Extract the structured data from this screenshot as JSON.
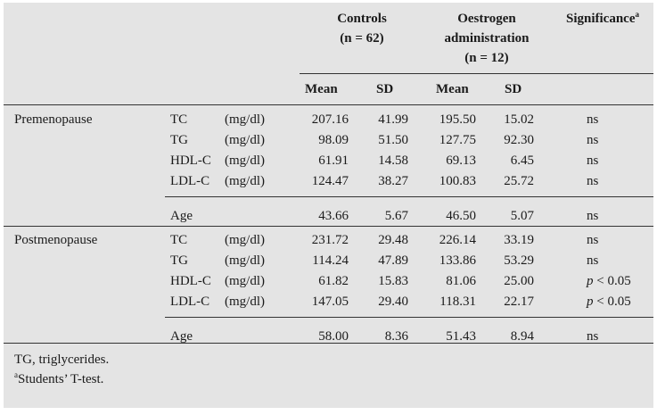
{
  "header": {
    "controls_line1": "Controls",
    "controls_line2": "(n = 62)",
    "oestrogen_line1": "Oestrogen",
    "oestrogen_line2": "administration",
    "oestrogen_line3": "(n = 12)",
    "significance": "Significance",
    "significance_sup": "a",
    "mean_label": "Mean",
    "sd_label": "SD"
  },
  "groups": [
    {
      "name": "Premenopause",
      "rows": [
        {
          "param": "TC",
          "unit": "(mg/dl)",
          "c_mean": "207.16",
          "c_sd": "41.99",
          "o_mean": "195.50",
          "o_sd": "15.02",
          "sig_p": "",
          "sig": "ns"
        },
        {
          "param": "TG",
          "unit": "(mg/dl)",
          "c_mean": "98.09",
          "c_sd": "51.50",
          "o_mean": "127.75",
          "o_sd": "92.30",
          "sig_p": "",
          "sig": "ns"
        },
        {
          "param": "HDL-C",
          "unit": "(mg/dl)",
          "c_mean": "61.91",
          "c_sd": "14.58",
          "o_mean": "69.13",
          "o_sd": "6.45",
          "sig_p": "",
          "sig": "ns"
        },
        {
          "param": "LDL-C",
          "unit": "(mg/dl)",
          "c_mean": "124.47",
          "c_sd": "38.27",
          "o_mean": "100.83",
          "o_sd": "25.72",
          "sig_p": "",
          "sig": "ns"
        }
      ],
      "age": {
        "param": "Age",
        "c_mean": "43.66",
        "c_sd": "5.67",
        "o_mean": "46.50",
        "o_sd": "5.07",
        "sig": "ns"
      }
    },
    {
      "name": "Postmenopause",
      "rows": [
        {
          "param": "TC",
          "unit": "(mg/dl)",
          "c_mean": "231.72",
          "c_sd": "29.48",
          "o_mean": "226.14",
          "o_sd": "33.19",
          "sig_p": "",
          "sig": "ns"
        },
        {
          "param": "TG",
          "unit": "(mg/dl)",
          "c_mean": "114.24",
          "c_sd": "47.89",
          "o_mean": "133.86",
          "o_sd": "53.29",
          "sig_p": "",
          "sig": "ns"
        },
        {
          "param": "HDL-C",
          "unit": "(mg/dl)",
          "c_mean": "61.82",
          "c_sd": "15.83",
          "o_mean": "81.06",
          "o_sd": "25.00",
          "sig_p": "p",
          "sig": " < 0.05"
        },
        {
          "param": "LDL-C",
          "unit": "(mg/dl)",
          "c_mean": "147.05",
          "c_sd": "29.40",
          "o_mean": "118.31",
          "o_sd": "22.17",
          "sig_p": "p",
          "sig": " < 0.05"
        }
      ],
      "age": {
        "param": "Age",
        "c_mean": "58.00",
        "c_sd": "8.36",
        "o_mean": "51.43",
        "o_sd": "8.94",
        "sig": "ns"
      }
    }
  ],
  "footnotes": {
    "line1": "TG, triglycerides.",
    "line2_sup": "a",
    "line2": "Students’ T-test."
  }
}
